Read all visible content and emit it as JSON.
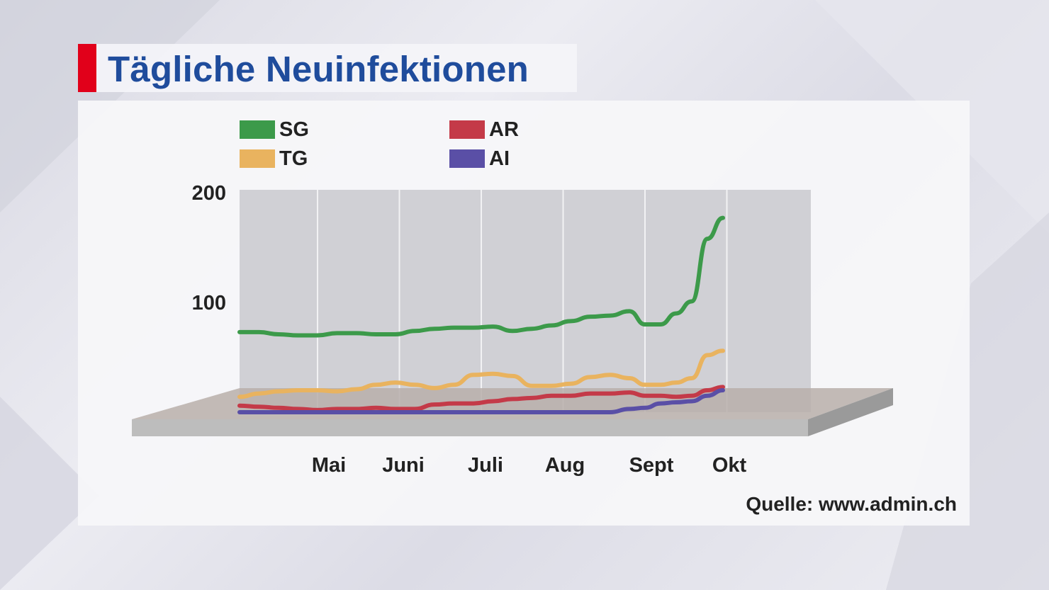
{
  "title": "Tägliche Neuinfektionen",
  "source": "Quelle: www.admin.ch",
  "colors": {
    "accent": "#e1001a",
    "title": "#1f4c9c",
    "SG": "#3c9a4a",
    "TG": "#e9b35f",
    "AR": "#c43a48",
    "AI": "#5a4fa6",
    "plot_back": "#d0d0d5",
    "floor_top": "#b8afaa",
    "floor_front": "#bcbcbc"
  },
  "chart_data": {
    "type": "line",
    "title": "Tägliche Neuinfektionen",
    "xlabel": "",
    "ylabel": "",
    "ylim": [
      0,
      200
    ],
    "yticks": [
      "200",
      "100"
    ],
    "grid": true,
    "legend": "top-left",
    "categories": [
      "Mai",
      "Juni",
      "Juli",
      "Aug",
      "Sept",
      "Okt"
    ],
    "x": [
      0,
      0.25,
      0.5,
      0.75,
      1,
      1.25,
      1.5,
      1.75,
      2,
      2.25,
      2.5,
      2.75,
      3,
      3.25,
      3.5,
      3.75,
      4,
      4.25,
      4.5,
      4.75,
      5,
      5.2,
      5.4,
      5.6,
      5.8,
      6.0,
      6.2
    ],
    "series": [
      {
        "name": "SG",
        "values": [
          73,
          73,
          71,
          70,
          70,
          72,
          72,
          71,
          71,
          74,
          76,
          77,
          77,
          78,
          74,
          76,
          79,
          83,
          87,
          88,
          92,
          80,
          80,
          90,
          101,
          158,
          177
        ]
      },
      {
        "name": "TG",
        "values": [
          14,
          17,
          19,
          20,
          20,
          19,
          21,
          25,
          27,
          25,
          22,
          25,
          34,
          35,
          33,
          24,
          24,
          26,
          32,
          34,
          31,
          25,
          25,
          27,
          31,
          52,
          56
        ]
      },
      {
        "name": "AR",
        "values": [
          6,
          5,
          4,
          3,
          2,
          3,
          3,
          4,
          3,
          3,
          7,
          8,
          8,
          10,
          12,
          13,
          15,
          15,
          17,
          17,
          18,
          15,
          15,
          14,
          15,
          20,
          23
        ]
      },
      {
        "name": "AI",
        "values": [
          0,
          0,
          0,
          0,
          0,
          0,
          0,
          0,
          0,
          0,
          0,
          0,
          0,
          0,
          0,
          0,
          0,
          0,
          0,
          0,
          3,
          4,
          8,
          9,
          10,
          15,
          20
        ]
      }
    ]
  }
}
